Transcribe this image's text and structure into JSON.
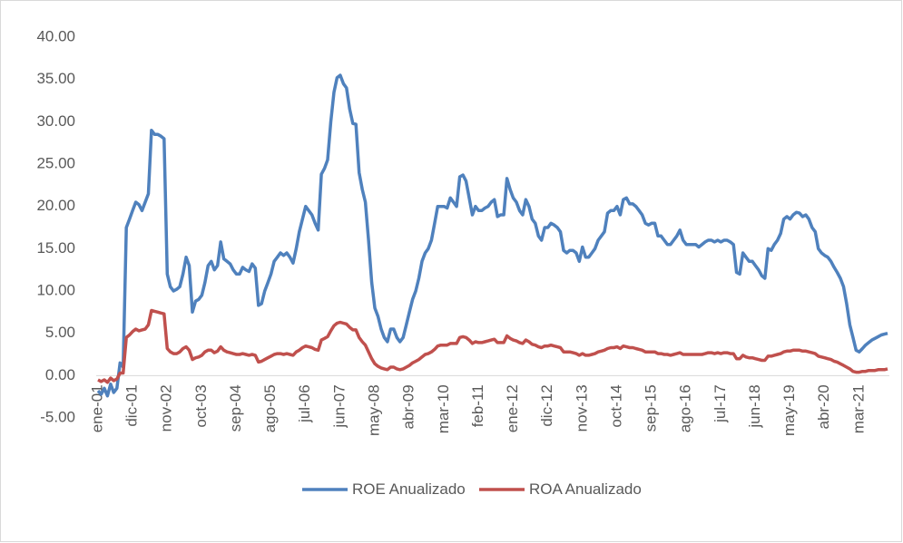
{
  "chart_data": {
    "type": "line",
    "categories": [
      "ene-01",
      null,
      null,
      null,
      null,
      null,
      null,
      null,
      null,
      null,
      null,
      "dic-01",
      null,
      null,
      null,
      null,
      null,
      null,
      null,
      null,
      null,
      null,
      "nov-02",
      null,
      null,
      null,
      null,
      null,
      null,
      null,
      null,
      null,
      null,
      "oct-03",
      null,
      null,
      null,
      null,
      null,
      null,
      null,
      null,
      null,
      null,
      "sep-04",
      null,
      null,
      null,
      null,
      null,
      null,
      null,
      null,
      null,
      null,
      "ago-05",
      null,
      null,
      null,
      null,
      null,
      null,
      null,
      null,
      null,
      null,
      "jul-06",
      null,
      null,
      null,
      null,
      null,
      null,
      null,
      null,
      null,
      null,
      "jun-07",
      null,
      null,
      null,
      null,
      null,
      null,
      null,
      null,
      null,
      null,
      "may-08",
      null,
      null,
      null,
      null,
      null,
      null,
      null,
      null,
      null,
      null,
      "abr-09",
      null,
      null,
      null,
      null,
      null,
      null,
      null,
      null,
      null,
      null,
      "mar-10",
      null,
      null,
      null,
      null,
      null,
      null,
      null,
      null,
      null,
      null,
      "feb-11",
      null,
      null,
      null,
      null,
      null,
      null,
      null,
      null,
      null,
      null,
      "ene-12",
      null,
      null,
      null,
      null,
      null,
      null,
      null,
      null,
      null,
      null,
      "dic-12",
      null,
      null,
      null,
      null,
      null,
      null,
      null,
      null,
      null,
      null,
      "nov-13",
      null,
      null,
      null,
      null,
      null,
      null,
      null,
      null,
      null,
      null,
      "oct-14",
      null,
      null,
      null,
      null,
      null,
      null,
      null,
      null,
      null,
      null,
      "sep-15",
      null,
      null,
      null,
      null,
      null,
      null,
      null,
      null,
      null,
      null,
      "ago-16",
      null,
      null,
      null,
      null,
      null,
      null,
      null,
      null,
      null,
      null,
      "jul-17",
      null,
      null,
      null,
      null,
      null,
      null,
      null,
      null,
      null,
      null,
      "jun-18",
      null,
      null,
      null,
      null,
      null,
      null,
      null,
      null,
      null,
      null,
      "may-19",
      null,
      null,
      null,
      null,
      null,
      null,
      null,
      null,
      null,
      null,
      "abr-20",
      null,
      null,
      null,
      null,
      null,
      null,
      null,
      null,
      null,
      null,
      "mar-21",
      null,
      null,
      null,
      null,
      null,
      null,
      null,
      null,
      null
    ],
    "series": [
      {
        "name": "ROE Anualizado",
        "color": "#4f81bd",
        "values": [
          -1.8,
          -2.2,
          -1.5,
          -2.4,
          -1.0,
          -2.0,
          -1.5,
          1.5,
          1.0,
          17.5,
          18.5,
          19.5,
          20.5,
          20.2,
          19.5,
          20.5,
          21.5,
          29.0,
          28.5,
          28.5,
          28.3,
          28.0,
          12.0,
          10.5,
          10.0,
          10.2,
          10.5,
          12.0,
          14.0,
          13.0,
          7.5,
          8.8,
          9.0,
          9.5,
          11.0,
          13.0,
          13.5,
          12.5,
          13.0,
          15.8,
          13.8,
          13.5,
          13.2,
          12.5,
          12.0,
          12.0,
          12.8,
          12.5,
          12.3,
          13.2,
          12.7,
          8.3,
          8.5,
          10.0,
          11.0,
          12.0,
          13.5,
          14.0,
          14.5,
          14.2,
          14.5,
          14.0,
          13.3,
          15.0,
          17.0,
          18.5,
          20.0,
          19.5,
          19.0,
          18.0,
          17.2,
          23.8,
          24.5,
          25.5,
          30.0,
          33.5,
          35.2,
          35.5,
          34.5,
          34.0,
          31.5,
          29.8,
          29.7,
          24.0,
          22.0,
          20.5,
          16.0,
          11.0,
          8.0,
          7.0,
          5.5,
          4.5,
          4.0,
          5.5,
          5.5,
          4.5,
          4.0,
          4.5,
          6.0,
          7.5,
          9.0,
          10.0,
          11.5,
          13.5,
          14.5,
          15.0,
          16.0,
          18.0,
          20.0,
          20.0,
          20.0,
          19.8,
          21.0,
          20.5,
          20.0,
          23.5,
          23.7,
          23.0,
          21.0,
          19.0,
          20.0,
          19.5,
          19.5,
          19.8,
          20.0,
          20.5,
          20.8,
          18.8,
          19.0,
          19.0,
          23.3,
          22.0,
          21.0,
          20.5,
          19.5,
          19.0,
          20.8,
          20.0,
          18.5,
          18.0,
          16.5,
          16.0,
          17.5,
          17.5,
          18.0,
          17.8,
          17.5,
          17.0,
          14.8,
          14.5,
          14.8,
          14.8,
          14.5,
          13.5,
          15.2,
          14.0,
          14.0,
          14.5,
          15.0,
          16.0,
          16.5,
          17.0,
          19.2,
          19.5,
          19.5,
          20.0,
          19.0,
          20.8,
          21.0,
          20.3,
          20.3,
          20.0,
          19.5,
          19.0,
          18.0,
          17.8,
          18.0,
          18.0,
          16.5,
          16.5,
          16.0,
          15.5,
          15.5,
          16.0,
          16.5,
          17.2,
          16.0,
          15.5,
          15.5,
          15.5,
          15.5,
          15.2,
          15.5,
          15.8,
          16.0,
          16.0,
          15.8,
          16.0,
          15.8,
          16.0,
          16.0,
          15.8,
          15.5,
          12.2,
          12.0,
          14.5,
          14.0,
          13.5,
          13.5,
          13.0,
          12.5,
          11.8,
          11.5,
          15.0,
          14.8,
          15.5,
          16.0,
          16.8,
          18.5,
          18.8,
          18.5,
          19.0,
          19.3,
          19.2,
          18.8,
          19.0,
          18.5,
          17.5,
          17.0,
          15.0,
          14.5,
          14.2,
          14.0,
          13.5,
          12.8,
          12.2,
          11.5,
          10.5,
          8.5,
          6.0,
          4.5,
          3.0,
          2.8,
          3.2,
          3.6,
          3.9,
          4.2,
          4.4,
          4.6,
          4.8,
          4.9,
          5.0
        ]
      },
      {
        "name": "ROA Anualizado",
        "color": "#c0504d",
        "values": [
          -0.5,
          -0.7,
          -0.5,
          -0.8,
          -0.3,
          -0.6,
          -0.4,
          0.3,
          0.3,
          4.5,
          4.8,
          5.2,
          5.5,
          5.3,
          5.4,
          5.5,
          6.0,
          7.7,
          7.6,
          7.5,
          7.4,
          7.3,
          3.2,
          2.8,
          2.6,
          2.6,
          2.8,
          3.2,
          3.4,
          3.0,
          1.9,
          2.1,
          2.2,
          2.4,
          2.8,
          3.0,
          3.0,
          2.7,
          2.9,
          3.4,
          3.0,
          2.8,
          2.7,
          2.6,
          2.5,
          2.5,
          2.6,
          2.5,
          2.4,
          2.5,
          2.4,
          1.6,
          1.7,
          1.9,
          2.1,
          2.3,
          2.5,
          2.6,
          2.6,
          2.5,
          2.6,
          2.5,
          2.4,
          2.8,
          3.0,
          3.3,
          3.5,
          3.4,
          3.3,
          3.1,
          3.0,
          4.2,
          4.4,
          4.6,
          5.3,
          5.9,
          6.2,
          6.3,
          6.2,
          6.1,
          5.7,
          5.4,
          5.4,
          4.5,
          4.0,
          3.6,
          2.8,
          2.0,
          1.4,
          1.1,
          0.9,
          0.8,
          0.7,
          1.0,
          1.0,
          0.8,
          0.7,
          0.8,
          1.0,
          1.2,
          1.5,
          1.7,
          1.9,
          2.2,
          2.5,
          2.6,
          2.8,
          3.1,
          3.5,
          3.6,
          3.6,
          3.6,
          3.8,
          3.8,
          3.8,
          4.5,
          4.6,
          4.5,
          4.2,
          3.8,
          4.0,
          3.9,
          3.9,
          4.0,
          4.1,
          4.2,
          4.3,
          3.9,
          3.9,
          3.9,
          4.7,
          4.4,
          4.2,
          4.1,
          3.9,
          3.8,
          4.2,
          4.0,
          3.7,
          3.6,
          3.4,
          3.3,
          3.5,
          3.5,
          3.6,
          3.5,
          3.4,
          3.3,
          2.8,
          2.8,
          2.8,
          2.7,
          2.6,
          2.4,
          2.6,
          2.4,
          2.4,
          2.5,
          2.6,
          2.8,
          2.9,
          3.0,
          3.2,
          3.3,
          3.3,
          3.4,
          3.2,
          3.5,
          3.4,
          3.3,
          3.3,
          3.2,
          3.1,
          3.0,
          2.8,
          2.8,
          2.8,
          2.8,
          2.6,
          2.6,
          2.5,
          2.5,
          2.4,
          2.5,
          2.6,
          2.7,
          2.5,
          2.5,
          2.5,
          2.5,
          2.5,
          2.5,
          2.5,
          2.6,
          2.7,
          2.7,
          2.6,
          2.7,
          2.6,
          2.7,
          2.7,
          2.6,
          2.6,
          2.0,
          2.0,
          2.4,
          2.2,
          2.1,
          2.1,
          2.0,
          1.9,
          1.8,
          1.8,
          2.3,
          2.3,
          2.4,
          2.5,
          2.6,
          2.8,
          2.9,
          2.9,
          3.0,
          3.0,
          3.0,
          2.9,
          2.9,
          2.8,
          2.7,
          2.6,
          2.3,
          2.2,
          2.1,
          2.0,
          1.9,
          1.7,
          1.6,
          1.4,
          1.2,
          1.0,
          0.8,
          0.5,
          0.4,
          0.4,
          0.5,
          0.5,
          0.6,
          0.6,
          0.6,
          0.7,
          0.7,
          0.7,
          0.8
        ]
      }
    ],
    "ylim": [
      -5,
      40
    ],
    "yticks": [
      {
        "value": -5,
        "label": "-5.00"
      },
      {
        "value": 0,
        "label": "0.00"
      },
      {
        "value": 5,
        "label": "5.00"
      },
      {
        "value": 10,
        "label": "10.00"
      },
      {
        "value": 15,
        "label": "15.00"
      },
      {
        "value": 20,
        "label": "20.00"
      },
      {
        "value": 25,
        "label": "25.00"
      },
      {
        "value": 30,
        "label": "30.00"
      },
      {
        "value": 35,
        "label": "35.00"
      },
      {
        "value": 40,
        "label": "40.00"
      }
    ],
    "legend": "bottom"
  }
}
